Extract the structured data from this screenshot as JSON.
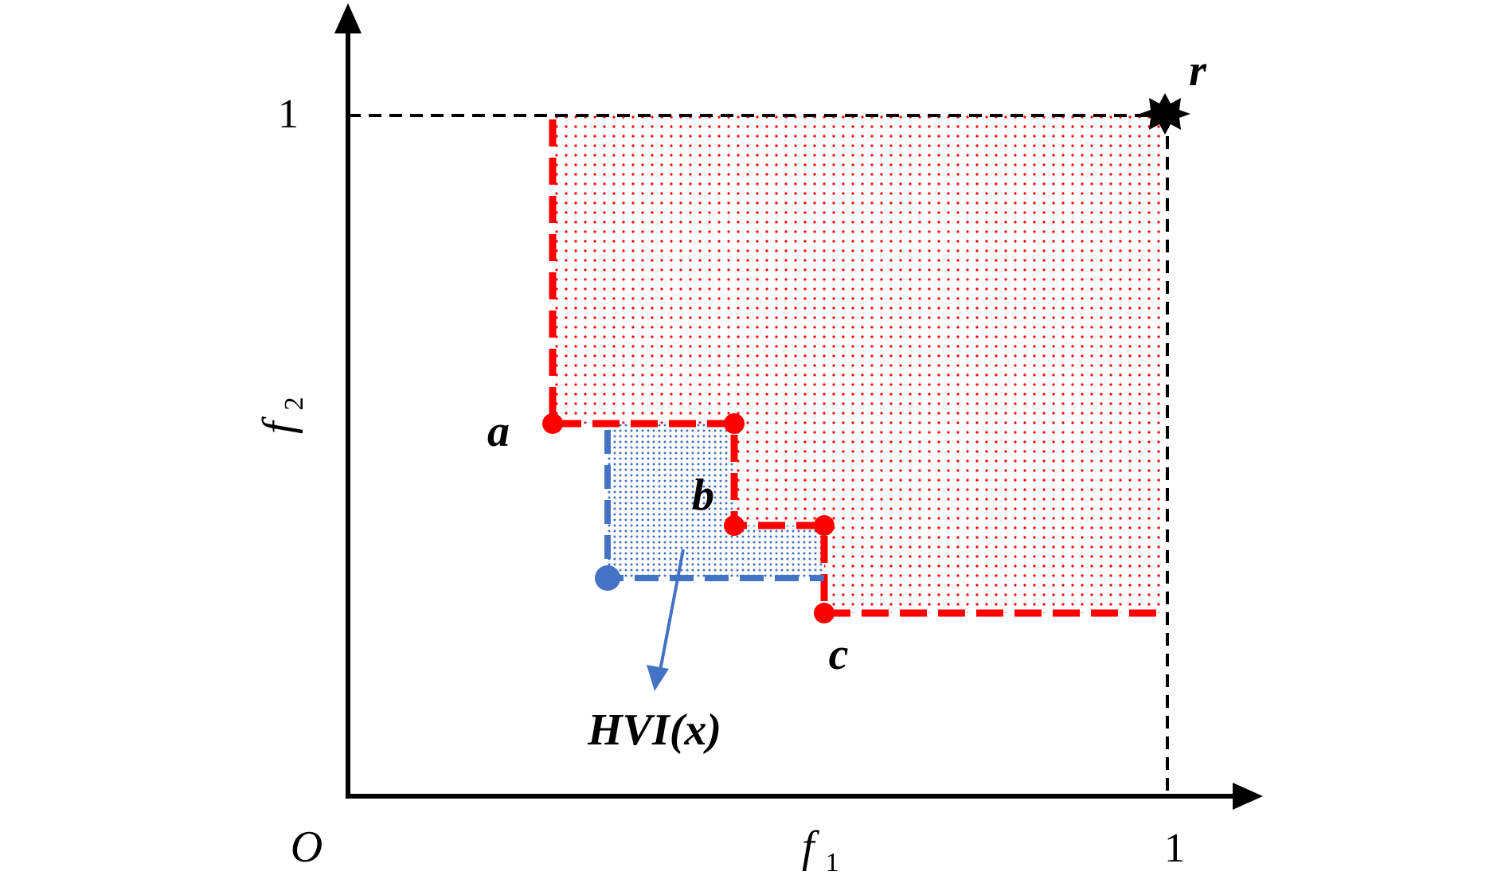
{
  "axes": {
    "origin_label": "O",
    "x_label": "f",
    "x_label_sub": "1",
    "y_label": "f",
    "y_label_sub": "2",
    "x_tick_label": "1",
    "y_tick_label": "1"
  },
  "points": {
    "a": "a",
    "b": "b",
    "c": "c",
    "r": "r"
  },
  "annotation": {
    "label": "HVI(x)"
  },
  "colors": {
    "axis": "#000000",
    "pareto_front": "#ff0000",
    "new_point": "#4472c4",
    "reference": "#000000"
  },
  "icons": {
    "reference_point": "star-icon"
  }
}
